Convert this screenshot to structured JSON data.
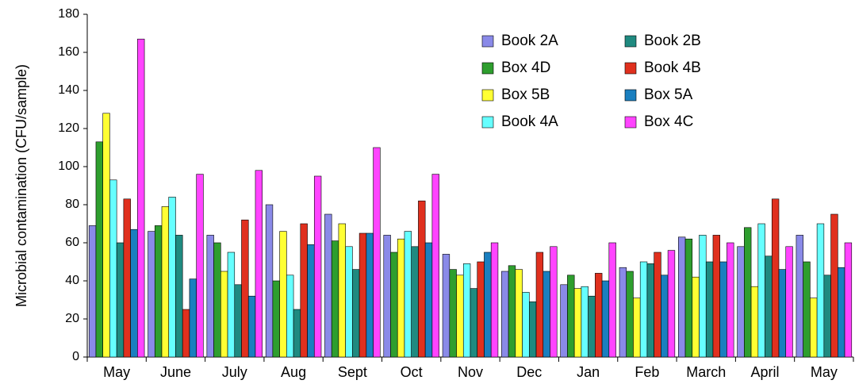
{
  "chart_data": {
    "type": "bar",
    "y_label": "Microbial contamination (CFU/sample)",
    "categories": [
      "May",
      "June",
      "July",
      "Aug",
      "Sept",
      "Oct",
      "Nov",
      "Dec",
      "Jan",
      "Feb",
      "March",
      "April",
      "May"
    ],
    "series": [
      {
        "name": "Book 2A",
        "color": "#8a8ae8",
        "values": [
          69,
          66,
          64,
          80,
          75,
          64,
          54,
          45,
          38,
          47,
          63,
          58,
          64
        ]
      },
      {
        "name": "Box 4D",
        "color": "#2e9e2e",
        "values": [
          113,
          69,
          60,
          40,
          61,
          55,
          46,
          48,
          43,
          45,
          62,
          68,
          50
        ]
      },
      {
        "name": "Box 5B",
        "color": "#ffff33",
        "values": [
          128,
          79,
          45,
          66,
          70,
          62,
          43,
          46,
          36,
          31,
          42,
          37,
          31
        ]
      },
      {
        "name": "Book 4A",
        "color": "#66ffff",
        "values": [
          93,
          84,
          55,
          43,
          58,
          66,
          49,
          34,
          37,
          50,
          64,
          70,
          70
        ]
      },
      {
        "name": "Book 2B",
        "color": "#1f8a80",
        "values": [
          60,
          64,
          38,
          25,
          46,
          58,
          36,
          29,
          32,
          49,
          50,
          53,
          43
        ]
      },
      {
        "name": "Book 4B",
        "color": "#e0301e",
        "values": [
          83,
          25,
          72,
          70,
          65,
          82,
          50,
          55,
          44,
          55,
          64,
          83,
          75
        ]
      },
      {
        "name": "Box 5A",
        "color": "#1a7fbf",
        "values": [
          67,
          41,
          32,
          59,
          65,
          60,
          55,
          45,
          40,
          43,
          50,
          46,
          47
        ]
      },
      {
        "name": "Box 4C",
        "color": "#ff44ff",
        "values": [
          167,
          96,
          98,
          95,
          110,
          96,
          60,
          58,
          60,
          56,
          60,
          58,
          60
        ]
      }
    ],
    "ylim": [
      0,
      180
    ],
    "yticks": [
      0,
      20,
      40,
      60,
      80,
      100,
      120,
      140,
      160,
      180
    ],
    "grid": false
  }
}
